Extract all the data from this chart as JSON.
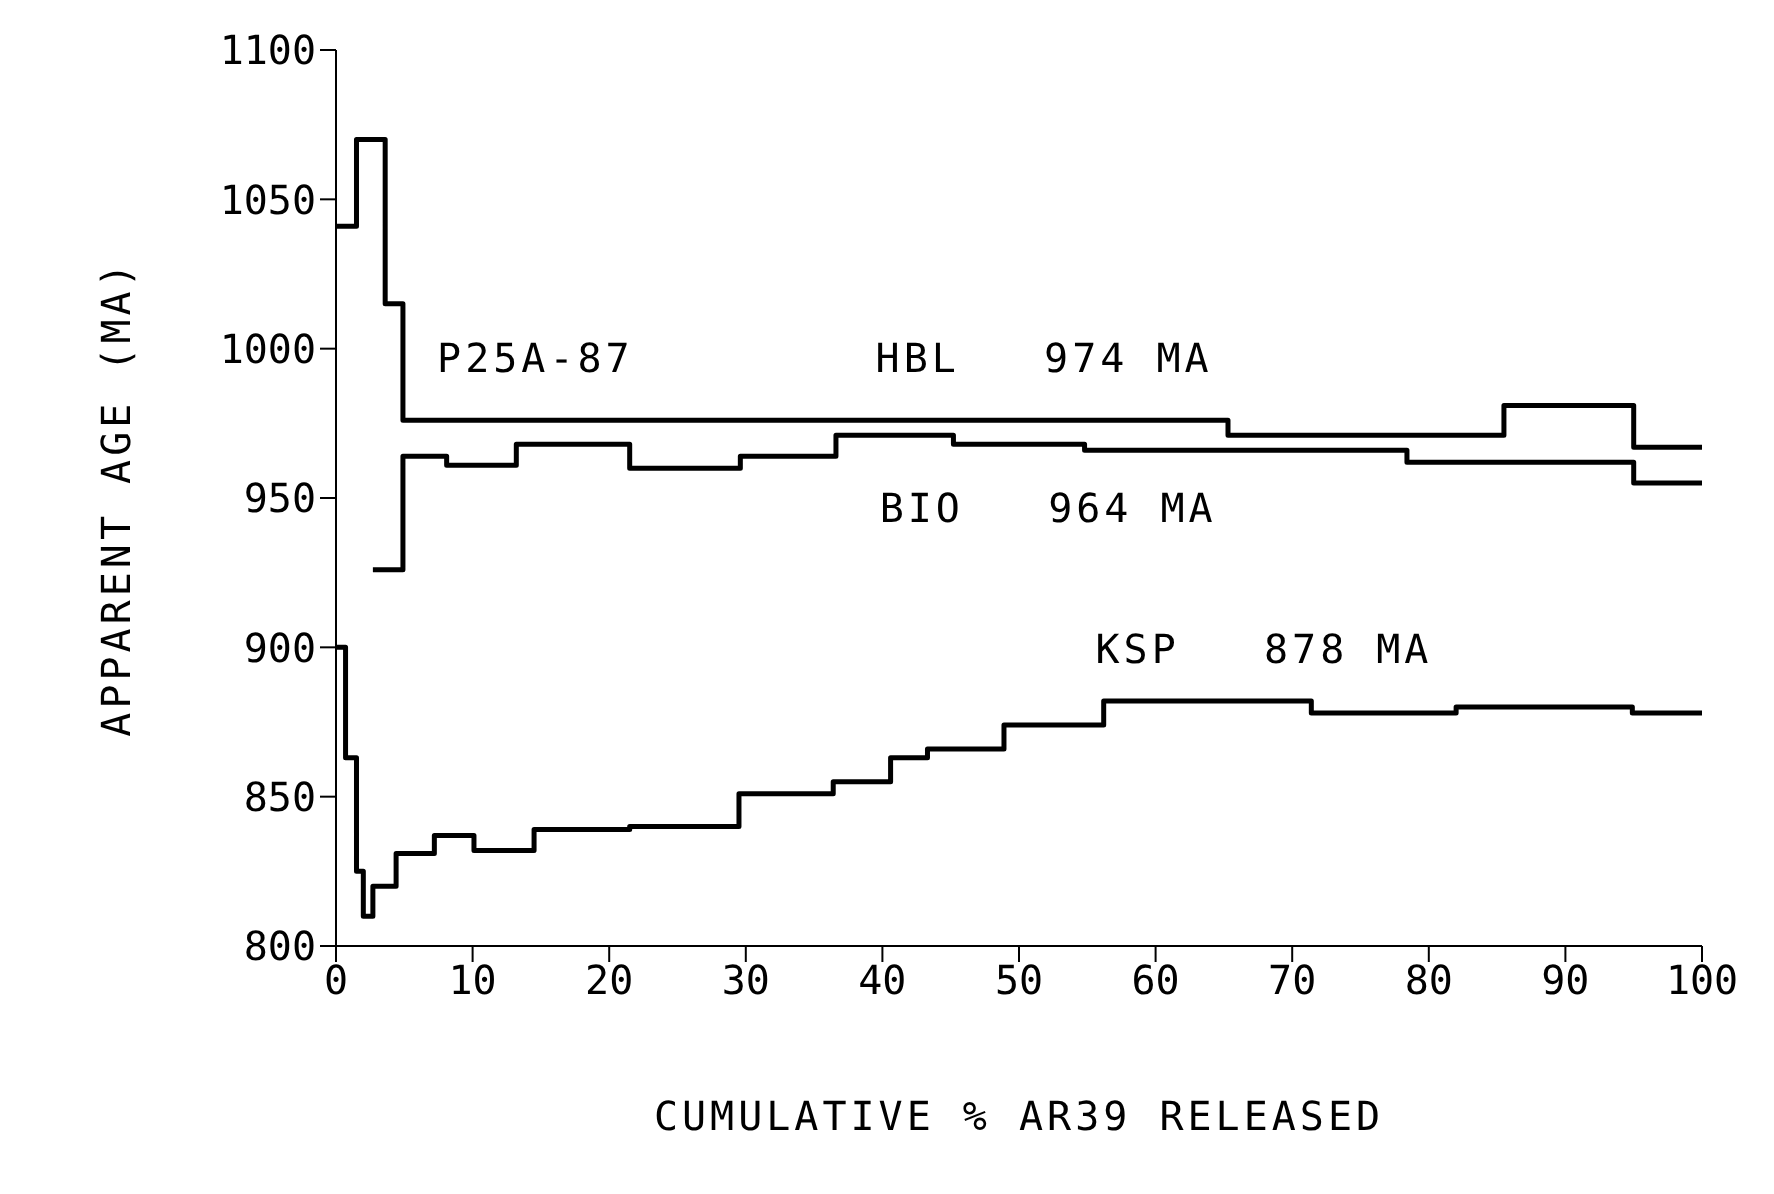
{
  "chart_data": {
    "type": "step",
    "xlabel": "CUMULATIVE % AR39 RELEASED",
    "ylabel": "APPARENT AGE (MA)",
    "xlim": [
      0,
      100
    ],
    "xticks": [
      0,
      10,
      20,
      30,
      40,
      50,
      60,
      70,
      80,
      90,
      100
    ],
    "ylim": [
      800,
      1100
    ],
    "yticks": [
      800,
      850,
      900,
      950,
      1000,
      1050,
      1100
    ],
    "grid": false,
    "legend": false,
    "marker": "none",
    "line_style": "solid",
    "series": [
      {
        "color": "#000000",
        "x": [
          0,
          1.5,
          3.6,
          4.9,
          65.3,
          85.5,
          95,
          100
        ],
        "values": [
          1041,
          1070,
          1015,
          976,
          971,
          981,
          967,
          967
        ]
      },
      {
        "color": "#000000",
        "x": [
          2.7,
          4.9,
          8.1,
          13.2,
          21.5,
          29.6,
          36.6,
          45.2,
          54.8,
          78.4,
          95,
          100
        ],
        "values": [
          926,
          964,
          961,
          968,
          960,
          964,
          971,
          968,
          966,
          962,
          955,
          955
        ]
      },
      {
        "color": "#000000",
        "x": [
          0,
          0.7,
          1.5,
          2.0,
          2.7,
          4.4,
          7.2,
          10.1,
          14.5,
          21.5,
          29.5,
          36.4,
          40.6,
          43.3,
          48.9,
          56.2,
          71.4,
          82,
          94.9,
          100
        ],
        "values": [
          900,
          863,
          825,
          810,
          820,
          831,
          837,
          832,
          839,
          840,
          851,
          855,
          863,
          866,
          874,
          882,
          878,
          880,
          878,
          878
        ]
      }
    ],
    "annotations": [
      "P25A-87",
      "HBL   974 MA",
      "BIO   964 MA",
      "KSP   878 MA"
    ]
  }
}
